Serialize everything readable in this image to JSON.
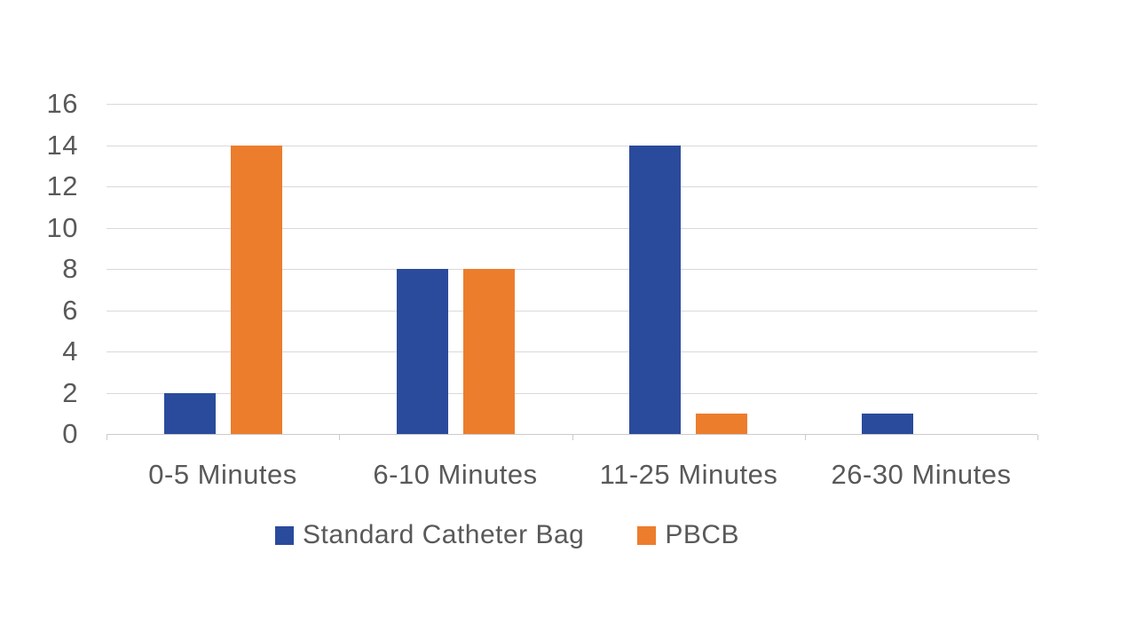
{
  "chart_data": {
    "type": "bar",
    "categories": [
      "0-5 Minutes",
      "6-10 Minutes",
      "11-25 Minutes",
      "26-30 Minutes"
    ],
    "series": [
      {
        "name": "Standard Catheter Bag",
        "color": "#2a4b9c",
        "values": [
          2,
          8,
          14,
          1
        ]
      },
      {
        "name": "PBCB",
        "color": "#ec7d2d",
        "values": [
          14,
          8,
          1,
          0
        ]
      }
    ],
    "yticks": [
      0,
      2,
      4,
      6,
      8,
      10,
      12,
      14,
      16
    ],
    "ylim": [
      0,
      16
    ],
    "grid": true,
    "legend_position": "bottom"
  },
  "colors": {
    "axis_text": "#595959",
    "gridline": "#d9d9d9",
    "axis_line": "#cccaca",
    "background": "#ffffff"
  }
}
